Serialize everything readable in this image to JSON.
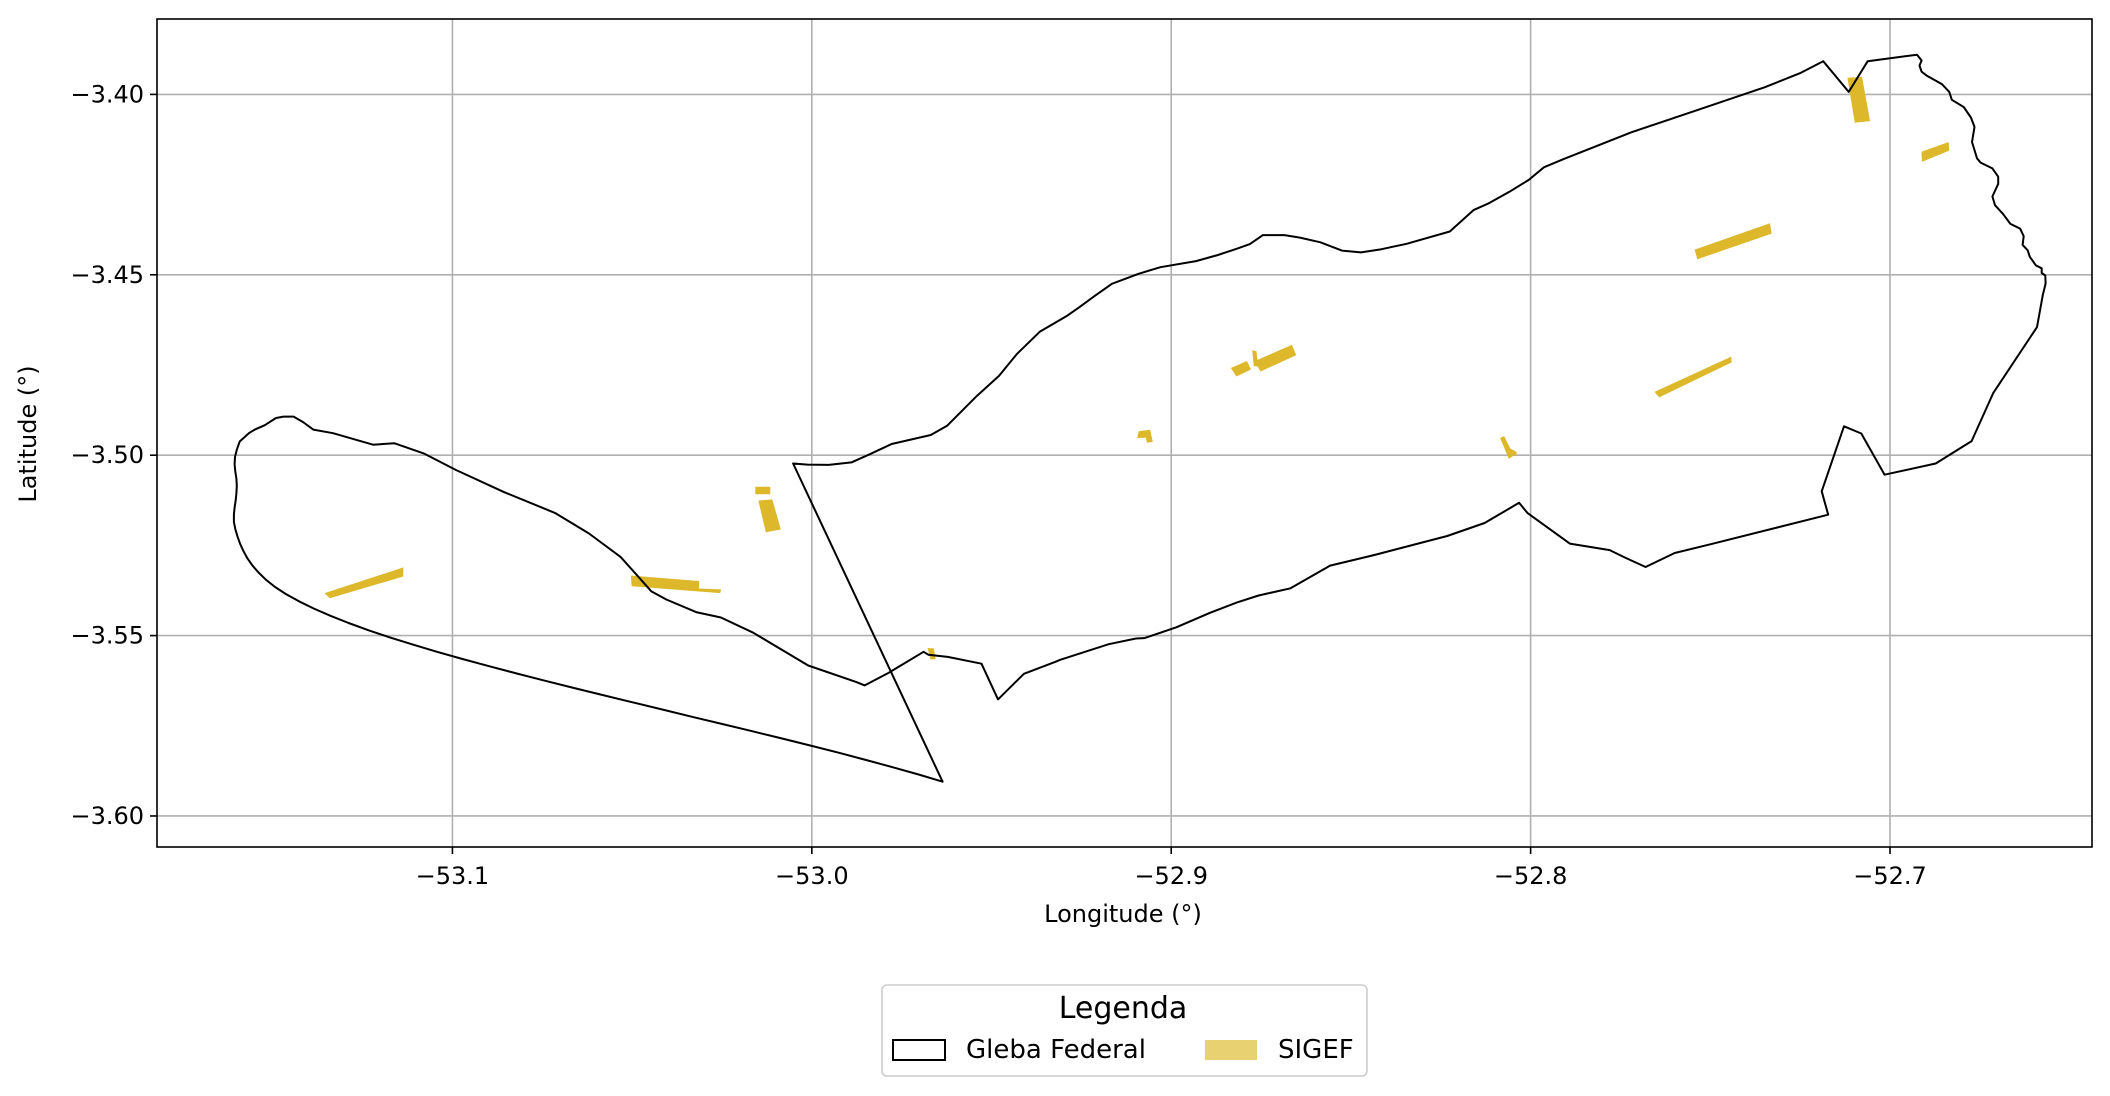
{
  "chart_data": {
    "type": "map",
    "xlabel": "Longitude (°)",
    "ylabel": "Latitude (°)",
    "xlim": [
      -53.1822,
      -52.6438
    ],
    "ylim": [
      -3.6086,
      -3.3791
    ],
    "xticks": [
      -53.1,
      -53.0,
      -52.9,
      -52.8,
      -52.7
    ],
    "xtick_labels": [
      "−53.1",
      "−53.0",
      "−52.9",
      "−52.8",
      "−52.7"
    ],
    "yticks": [
      -3.4,
      -3.45,
      -3.5,
      -3.55,
      -3.6
    ],
    "ytick_labels": [
      "−3.40",
      "−3.45",
      "−3.50",
      "−3.55",
      "−3.60"
    ],
    "grid": true,
    "legend": {
      "title": "Legenda",
      "placement": "bottom-center",
      "entries": [
        {
          "label": "Gleba Federal",
          "style": "outline",
          "color": "#000000"
        },
        {
          "label": "SIGEF",
          "style": "fill",
          "color": "#e8d170"
        }
      ]
    },
    "series": [
      {
        "name": "Gleba Federal",
        "kind": "polygon",
        "stroke": "#000000",
        "coords": [
          [
            -53.0052,
            -3.5023
          ],
          [
            -53.0012,
            -3.5026
          ],
          [
            -52.9953,
            -3.5027
          ],
          [
            -52.989,
            -3.502
          ],
          [
            -52.9834,
            -3.4995
          ],
          [
            -52.9778,
            -3.4969
          ],
          [
            -52.9669,
            -3.4944
          ],
          [
            -52.9623,
            -3.4918
          ],
          [
            -52.954,
            -3.4835
          ],
          [
            -52.9479,
            -3.478
          ],
          [
            -52.943,
            -3.472
          ],
          [
            -52.9366,
            -3.4658
          ],
          [
            -52.9292,
            -3.4615
          ],
          [
            -52.9256,
            -3.459
          ],
          [
            -52.9215,
            -3.456
          ],
          [
            -52.9165,
            -3.4525
          ],
          [
            -52.909,
            -3.4497
          ],
          [
            -52.903,
            -3.4479
          ],
          [
            -52.8931,
            -3.4462
          ],
          [
            -52.887,
            -3.4445
          ],
          [
            -52.8818,
            -3.4428
          ],
          [
            -52.8781,
            -3.4415
          ],
          [
            -52.8745,
            -3.439
          ],
          [
            -52.8685,
            -3.439
          ],
          [
            -52.8642,
            -3.4397
          ],
          [
            -52.8585,
            -3.441
          ],
          [
            -52.8525,
            -3.4433
          ],
          [
            -52.8472,
            -3.4438
          ],
          [
            -52.8415,
            -3.4429
          ],
          [
            -52.8345,
            -3.4414
          ],
          [
            -52.8225,
            -3.438
          ],
          [
            -52.8158,
            -3.432
          ],
          [
            -52.8119,
            -3.4303
          ],
          [
            -52.8059,
            -3.427
          ],
          [
            -52.8005,
            -3.4237
          ],
          [
            -52.7963,
            -3.4202
          ],
          [
            -52.791,
            -3.418
          ],
          [
            -52.772,
            -3.4105
          ],
          [
            -52.754,
            -3.4045
          ],
          [
            -52.7348,
            -3.398
          ],
          [
            -52.7248,
            -3.394
          ],
          [
            -52.7186,
            -3.3908
          ],
          [
            -52.7115,
            -3.3993
          ],
          [
            -52.7062,
            -3.3908
          ],
          [
            -52.6925,
            -3.389
          ],
          [
            -52.6912,
            -3.3906
          ],
          [
            -52.6918,
            -3.392
          ],
          [
            -52.6912,
            -3.3937
          ],
          [
            -52.6898,
            -3.3948
          ],
          [
            -52.6855,
            -3.3972
          ],
          [
            -52.6835,
            -3.3993
          ],
          [
            -52.6828,
            -3.4015
          ],
          [
            -52.6795,
            -3.4035
          ],
          [
            -52.6775,
            -3.4064
          ],
          [
            -52.6765,
            -3.409
          ],
          [
            -52.6772,
            -3.4132
          ],
          [
            -52.6758,
            -3.4177
          ],
          [
            -52.6748,
            -3.4189
          ],
          [
            -52.6715,
            -3.4205
          ],
          [
            -52.6699,
            -3.4228
          ],
          [
            -52.6699,
            -3.4248
          ],
          [
            -52.6715,
            -3.4283
          ],
          [
            -52.6708,
            -3.4307
          ],
          [
            -52.6685,
            -3.4332
          ],
          [
            -52.6665,
            -3.4359
          ],
          [
            -52.6638,
            -3.4372
          ],
          [
            -52.6628,
            -3.4393
          ],
          [
            -52.6631,
            -3.4417
          ],
          [
            -52.6617,
            -3.4432
          ],
          [
            -52.6611,
            -3.445
          ],
          [
            -52.6594,
            -3.4474
          ],
          [
            -52.6578,
            -3.4482
          ],
          [
            -52.6578,
            -3.4495
          ],
          [
            -52.6568,
            -3.4502
          ],
          [
            -52.6567,
            -3.4523
          ],
          [
            -52.6568,
            -3.4528
          ],
          [
            -52.6575,
            -3.4556
          ],
          [
            -52.6591,
            -3.4645
          ],
          [
            -52.6713,
            -3.4828
          ],
          [
            -52.6773,
            -3.4961
          ],
          [
            -52.6873,
            -3.5023
          ],
          [
            -52.7015,
            -3.5054
          ],
          [
            -52.708,
            -3.494
          ],
          [
            -52.7128,
            -3.492
          ],
          [
            -52.719,
            -3.51
          ],
          [
            -52.7172,
            -3.5165
          ],
          [
            -52.75,
            -3.5247
          ],
          [
            -52.7599,
            -3.5271
          ],
          [
            -52.768,
            -3.531
          ],
          [
            -52.7735,
            -3.5285
          ],
          [
            -52.778,
            -3.5263
          ],
          [
            -52.7891,
            -3.5245
          ],
          [
            -52.8009,
            -3.516
          ],
          [
            -52.8032,
            -3.5132
          ],
          [
            -52.8128,
            -3.5188
          ],
          [
            -52.8232,
            -3.5224
          ],
          [
            -52.8436,
            -3.5277
          ],
          [
            -52.8558,
            -3.5306
          ],
          [
            -52.8668,
            -3.5369
          ],
          [
            -52.8757,
            -3.5389
          ],
          [
            -52.8817,
            -3.5408
          ],
          [
            -52.8893,
            -3.5437
          ],
          [
            -52.8986,
            -3.5477
          ],
          [
            -52.9074,
            -3.5507
          ],
          [
            -52.9098,
            -3.5508
          ],
          [
            -52.9174,
            -3.5524
          ],
          [
            -52.9309,
            -3.5567
          ],
          [
            -52.9323,
            -3.5573
          ],
          [
            -52.941,
            -3.5606
          ],
          [
            -52.9482,
            -3.5677
          ],
          [
            -52.9528,
            -3.5578
          ],
          [
            -52.9622,
            -3.5559
          ],
          [
            -52.9676,
            -3.5553
          ],
          [
            -52.9689,
            -3.5545
          ],
          [
            -52.9791,
            -3.5606
          ],
          [
            -52.9853,
            -3.5638
          ],
          [
            -52.9876,
            -3.5629
          ],
          [
            -53.001,
            -3.5583
          ],
          [
            -53.0163,
            -3.5492
          ],
          [
            -53.0253,
            -3.545
          ],
          [
            -53.0322,
            -3.5435
          ],
          [
            -53.0405,
            -3.54
          ],
          [
            -53.0447,
            -3.5377
          ],
          [
            -53.0532,
            -3.5282
          ],
          [
            -53.062,
            -3.5217
          ],
          [
            -53.0715,
            -3.516
          ],
          [
            -53.0855,
            -3.5103
          ],
          [
            -53.099,
            -3.5041
          ],
          [
            -53.108,
            -3.4995
          ],
          [
            -53.1161,
            -3.4967
          ],
          [
            -53.1221,
            -3.4971
          ],
          [
            -53.1332,
            -3.4939
          ],
          [
            -53.1387,
            -3.4929
          ],
          [
            -53.1416,
            -3.4908
          ],
          [
            -53.1442,
            -3.4893
          ],
          [
            -53.147,
            -3.4893
          ],
          [
            -53.1491,
            -3.4897
          ],
          [
            -53.1522,
            -3.4917
          ],
          [
            -53.155,
            -3.4929
          ],
          [
            -53.1565,
            -3.4938
          ],
          [
            -53.1592,
            -3.4962
          ],
          [
            -53.16,
            -3.4985
          ],
          [
            -53.1605,
            -3.5005
          ],
          [
            -53.1606,
            -3.5025
          ],
          [
            -53.1604,
            -3.5045
          ],
          [
            -53.1601,
            -3.5065
          ],
          [
            -53.16,
            -3.5085
          ],
          [
            -53.1601,
            -3.5105
          ],
          [
            -53.1603,
            -3.5125
          ],
          [
            -53.1606,
            -3.5145
          ],
          [
            -53.1608,
            -3.5165
          ],
          [
            -53.1608,
            -3.5185
          ],
          [
            -53.1604,
            -3.5205
          ],
          [
            -53.1598,
            -3.5225
          ],
          [
            -53.1591,
            -3.5245
          ],
          [
            -53.1582,
            -3.5265
          ],
          [
            -53.1571,
            -3.5285
          ],
          [
            -53.1557,
            -3.5305
          ],
          [
            -53.154,
            -3.5325
          ],
          [
            -53.1519,
            -3.5345
          ],
          [
            -53.1494,
            -3.5365
          ],
          [
            -53.1463,
            -3.5385
          ],
          [
            -53.1427,
            -3.5405
          ],
          [
            -53.1386,
            -3.5425
          ],
          [
            -53.134,
            -3.5445
          ],
          [
            -53.1289,
            -3.5465
          ],
          [
            -53.1234,
            -3.5485
          ],
          [
            -53.1174,
            -3.5505
          ],
          [
            -53.111,
            -3.5525
          ],
          [
            -53.1043,
            -3.5545
          ],
          [
            -53.0972,
            -3.5565
          ],
          [
            -53.0898,
            -3.5585
          ],
          [
            -53.0821,
            -3.5605
          ],
          [
            -53.0743,
            -3.5625
          ],
          [
            -53.0663,
            -3.5645
          ],
          [
            -53.0581,
            -3.5665
          ],
          [
            -53.0499,
            -3.5685
          ],
          [
            -53.0416,
            -3.5705
          ],
          [
            -53.0333,
            -3.5725
          ],
          [
            -53.0249,
            -3.5745
          ],
          [
            -53.0166,
            -3.5765
          ],
          [
            -53.0084,
            -3.5785
          ],
          [
            -53.0003,
            -3.5805
          ],
          [
            -52.9924,
            -3.5825
          ],
          [
            -52.9848,
            -3.5845
          ],
          [
            -52.9774,
            -3.5865
          ],
          [
            -52.9703,
            -3.5885
          ],
          [
            -52.9636,
            -3.5905
          ]
        ]
      },
      {
        "name": "SIGEF",
        "kind": "polygons",
        "fill": "#dcb82a",
        "polygons": [
          [
            [
              -53.1353,
              -3.5383
            ],
            [
              -53.1341,
              -3.5395
            ],
            [
              -53.1138,
              -3.5335
            ],
            [
              -53.1138,
              -3.5313
            ]
          ],
          [
            [
              -53.0502,
              -3.5335
            ],
            [
              -53.05,
              -3.5362
            ],
            [
              -53.0256,
              -3.5381
            ],
            [
              -53.0254,
              -3.5373
            ],
            [
              -53.0315,
              -3.5371
            ],
            [
              -53.0315,
              -3.535
            ]
          ],
          [
            [
              -53.0156,
              -3.5107
            ],
            [
              -53.0117,
              -3.5107
            ],
            [
              -53.0117,
              -3.5089
            ],
            [
              -53.0156,
              -3.5089
            ]
          ],
          [
            [
              -53.0147,
              -3.5127
            ],
            [
              -53.0111,
              -3.5124
            ],
            [
              -53.0088,
              -3.5205
            ],
            [
              -53.0127,
              -3.5212
            ]
          ],
          [
            [
              -52.9676,
              -3.5536
            ],
            [
              -52.9662,
              -3.5537
            ],
            [
              -52.9657,
              -3.5564
            ],
            [
              -52.9669,
              -3.5565
            ]
          ],
          [
            [
              -52.9089,
              -3.4935
            ],
            [
              -52.906,
              -3.4931
            ],
            [
              -52.9053,
              -3.4962
            ],
            [
              -52.9066,
              -3.4964
            ],
            [
              -52.907,
              -3.495
            ],
            [
              -52.9093,
              -3.4951
            ]
          ],
          [
            [
              -52.8832,
              -3.4759
            ],
            [
              -52.8818,
              -3.478
            ],
            [
              -52.878,
              -3.4762
            ],
            [
              -52.879,
              -3.4741
            ]
          ],
          [
            [
              -52.8766,
              -3.474
            ],
            [
              -52.8751,
              -3.4766
            ],
            [
              -52.8654,
              -3.4722
            ],
            [
              -52.8665,
              -3.4696
            ]
          ],
          [
            [
              -52.8773,
              -3.4711
            ],
            [
              -52.8764,
              -3.4713
            ],
            [
              -52.876,
              -3.4752
            ],
            [
              -52.8769,
              -3.4752
            ]
          ],
          [
            [
              -52.8083,
              -3.4953
            ],
            [
              -52.8074,
              -3.4949
            ],
            [
              -52.8049,
              -3.5001
            ],
            [
              -52.806,
              -3.5008
            ]
          ],
          [
            [
              -52.8072,
              -3.4975
            ],
            [
              -52.804,
              -3.4992
            ],
            [
              -52.8041,
              -3.5
            ],
            [
              -52.8069,
              -3.4986
            ]
          ],
          [
            [
              -52.7653,
              -3.4825
            ],
            [
              -52.7642,
              -3.4838
            ],
            [
              -52.7442,
              -3.4742
            ],
            [
              -52.7443,
              -3.4729
            ]
          ],
          [
            [
              -52.7542,
              -3.4431
            ],
            [
              -52.7535,
              -3.4455
            ],
            [
              -52.7331,
              -3.4385
            ],
            [
              -52.7335,
              -3.4359
            ]
          ],
          [
            [
              -52.7117,
              -3.3955
            ],
            [
              -52.7079,
              -3.3953
            ],
            [
              -52.7057,
              -3.4073
            ],
            [
              -52.7097,
              -3.4077
            ]
          ],
          [
            [
              -52.6911,
              -3.416
            ],
            [
              -52.691,
              -3.4185
            ],
            [
              -52.6837,
              -3.4155
            ],
            [
              -52.6838,
              -3.4134
            ]
          ]
        ]
      }
    ]
  }
}
